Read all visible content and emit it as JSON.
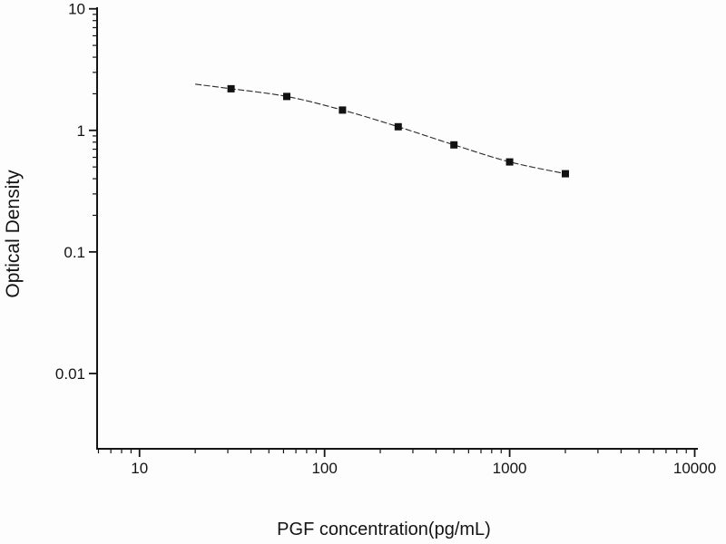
{
  "chart_data": {
    "type": "scatter",
    "title": "",
    "xlabel": "PGF concentration(pg/mL)",
    "ylabel": "Optical Density",
    "x_scale": "log",
    "y_scale": "log",
    "grid": false,
    "legend_position": "none",
    "marker_shape": "filled-square",
    "x": [
      31.25,
      62.5,
      125,
      250,
      500,
      1000,
      2000
    ],
    "y": [
      2.2,
      1.9,
      1.47,
      1.07,
      0.76,
      0.55,
      0.44
    ],
    "fit_curve": {
      "x": [
        20,
        31.25,
        62.5,
        125,
        250,
        500,
        1000,
        2000
      ],
      "y": [
        2.4,
        2.2,
        1.9,
        1.47,
        1.07,
        0.76,
        0.55,
        0.44
      ]
    },
    "xlim": [
      5.9,
      10400
    ],
    "ylim": [
      0.0024,
      10.3
    ],
    "x_major_ticks": {
      "values": [
        10,
        100,
        1000,
        10000
      ],
      "labels": [
        "10",
        "100",
        "1000",
        "10000"
      ]
    },
    "y_major_ticks": {
      "values": [
        10,
        1,
        0.1,
        0.01
      ],
      "labels": [
        "10",
        "1",
        "0.1",
        "0.01"
      ]
    },
    "colors": {
      "axis": "#141414",
      "line": "#2a2a2a",
      "marker": "#121212",
      "background": "#fdfdfd"
    }
  }
}
